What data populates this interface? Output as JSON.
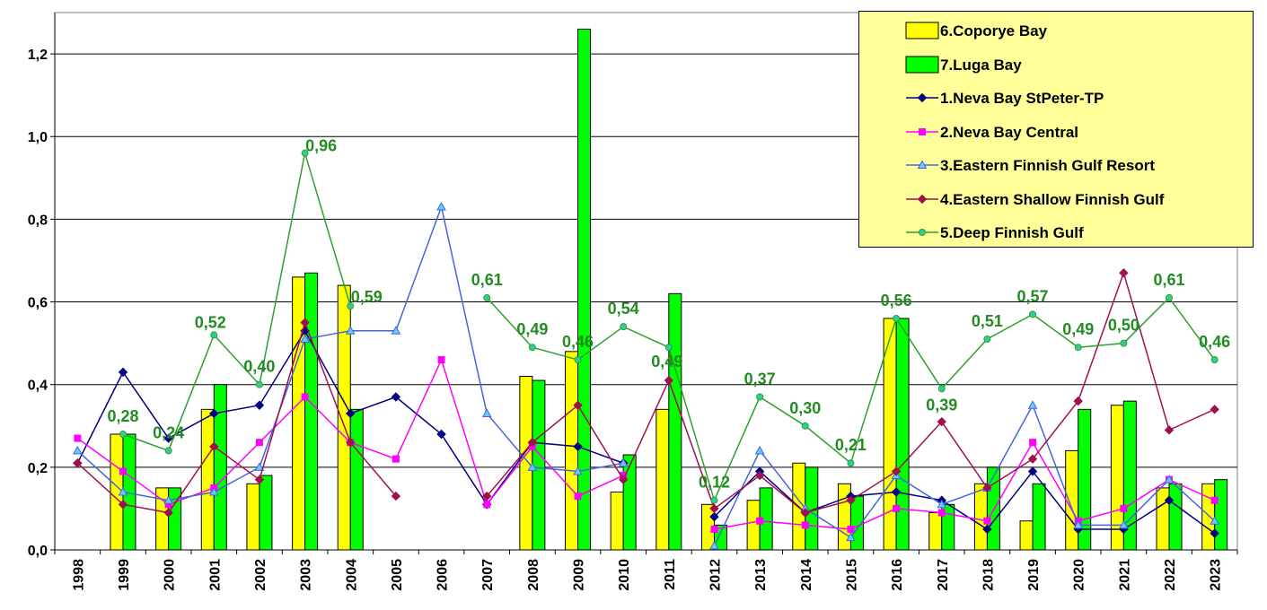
{
  "chart_data": {
    "type": "bar",
    "title": "",
    "xlabel": "",
    "ylabel": "",
    "ylim": [
      0,
      1.3
    ],
    "y_ticks": [
      "0,0",
      "0,2",
      "0,4",
      "0,6",
      "0,8",
      "1,0",
      "1,2"
    ],
    "grid": true,
    "legend_placement": "top-right",
    "categories": [
      "1998",
      "1999",
      "2000",
      "2001",
      "2002",
      "2003",
      "2004",
      "2005",
      "2006",
      "2007",
      "2008",
      "2009",
      "2010",
      "2011",
      "2012",
      "2013",
      "2014",
      "2015",
      "2016",
      "2017",
      "2018",
      "2019",
      "2020",
      "2021",
      "2022",
      "2023"
    ],
    "bar_series": [
      {
        "name": "6.Coporye Bay",
        "color": "#ffff00",
        "values": [
          null,
          0.28,
          0.15,
          0.34,
          0.16,
          0.66,
          0.64,
          null,
          null,
          null,
          0.42,
          0.48,
          0.14,
          0.34,
          0.11,
          0.12,
          0.21,
          0.16,
          0.56,
          0.09,
          0.16,
          0.07,
          0.24,
          0.35,
          0.15,
          0.16
        ]
      },
      {
        "name": "7.Luga Bay",
        "color": "#00ff00",
        "values": [
          null,
          0.28,
          0.15,
          0.4,
          0.18,
          0.67,
          0.34,
          null,
          null,
          null,
          0.41,
          1.26,
          0.23,
          0.62,
          0.06,
          0.15,
          0.2,
          0.13,
          0.56,
          0.11,
          0.2,
          0.16,
          0.34,
          0.36,
          0.16,
          0.17
        ]
      }
    ],
    "line_series": [
      {
        "name": "1.Neva Bay StPeter-TP",
        "color": "#000080",
        "marker": "diamond",
        "values": [
          0.21,
          0.43,
          0.27,
          0.33,
          0.35,
          0.53,
          0.33,
          0.37,
          0.28,
          0.11,
          0.26,
          0.25,
          0.21,
          null,
          0.08,
          0.19,
          0.09,
          0.13,
          0.14,
          0.12,
          0.05,
          0.19,
          0.05,
          0.05,
          0.12,
          0.04
        ]
      },
      {
        "name": "2.Neva Bay Central",
        "color": "#ff00ff",
        "marker": "square",
        "values": [
          0.27,
          0.19,
          0.11,
          0.15,
          0.26,
          0.37,
          0.26,
          0.22,
          0.46,
          0.11,
          0.25,
          0.13,
          0.18,
          null,
          0.05,
          0.07,
          0.06,
          0.05,
          0.1,
          0.09,
          0.07,
          0.26,
          0.07,
          0.1,
          0.17,
          0.12
        ]
      },
      {
        "name": "3.Eastern Finnish Gulf Resort",
        "color": "#4466dd",
        "marker": "triangle",
        "values": [
          0.24,
          0.14,
          0.12,
          0.14,
          0.2,
          0.51,
          0.53,
          0.53,
          0.83,
          0.33,
          0.2,
          0.19,
          0.21,
          null,
          0.01,
          0.24,
          0.1,
          0.03,
          0.18,
          0.11,
          0.15,
          0.35,
          0.06,
          0.06,
          0.17,
          0.07
        ]
      },
      {
        "name": "4.Eastern Shallow Finnish Gulf",
        "color": "#a01050",
        "marker": "diamond",
        "values": [
          0.21,
          0.11,
          0.09,
          0.25,
          0.17,
          0.55,
          0.26,
          0.13,
          null,
          0.13,
          0.26,
          0.35,
          0.17,
          0.41,
          0.1,
          0.18,
          0.09,
          0.12,
          0.19,
          0.31,
          0.15,
          0.22,
          0.36,
          0.67,
          0.29,
          0.34
        ]
      },
      {
        "name": "5.Deep Finnish Gulf",
        "color": "#2ca02c",
        "marker": "circle",
        "values": [
          null,
          0.28,
          0.24,
          0.52,
          0.4,
          0.96,
          0.59,
          null,
          null,
          0.61,
          0.49,
          0.46,
          0.54,
          0.49,
          0.12,
          0.37,
          0.3,
          0.21,
          0.56,
          0.39,
          0.51,
          0.57,
          0.49,
          0.5,
          0.61,
          0.46
        ],
        "labels": [
          null,
          "0,28",
          "0,24",
          "0,52",
          "0,40",
          "0,96",
          "0,59",
          null,
          null,
          "0,61",
          "0,49",
          "0,46",
          "0,54",
          "0,49",
          "0,12",
          "0,37",
          "0,30",
          "0,21",
          "0,56",
          "0,39",
          "0,51",
          "0,57",
          "0,49",
          "0,50",
          "0,61",
          "0,46"
        ]
      }
    ],
    "legend_order": [
      "6.Coporye Bay",
      "7.Luga Bay",
      "1.Neva Bay StPeter-TP",
      "2.Neva Bay Central",
      "3.Eastern Finnish Gulf Resort",
      "4.Eastern Shallow Finnish Gulf",
      "5.Deep Finnish Gulf"
    ]
  }
}
